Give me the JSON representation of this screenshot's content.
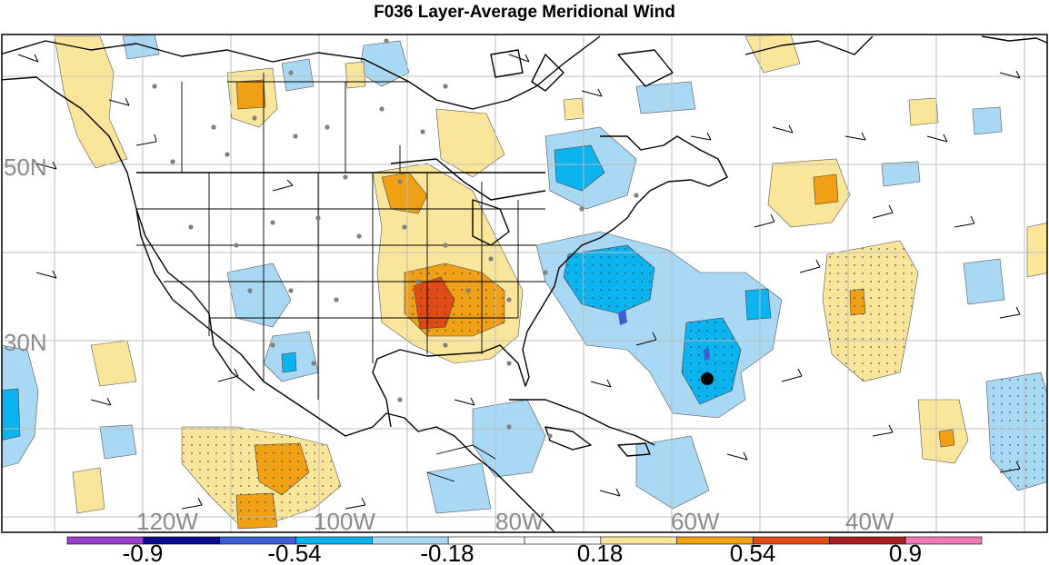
{
  "title": "F036 Layer-Average Meridional Wind",
  "lat_labels": [
    "50N",
    "30N"
  ],
  "lon_labels": [
    "120W",
    "100W",
    "80W",
    "60W",
    "40W"
  ],
  "colorbar": {
    "colors": [
      "#9a3ed0",
      "#0a0a8c",
      "#3c5fd2",
      "#0bb4ee",
      "#a8d8f4",
      "#ffffff",
      "#ffffff",
      "#fae69a",
      "#f0a014",
      "#e04a14",
      "#a82020",
      "#f07ab4"
    ],
    "labels": [
      "-0.9",
      "-0.54",
      "-0.18",
      "0.18",
      "0.54",
      "0.9"
    ]
  },
  "marker": {
    "name": "storm-center-dot",
    "color": "#000000"
  }
}
